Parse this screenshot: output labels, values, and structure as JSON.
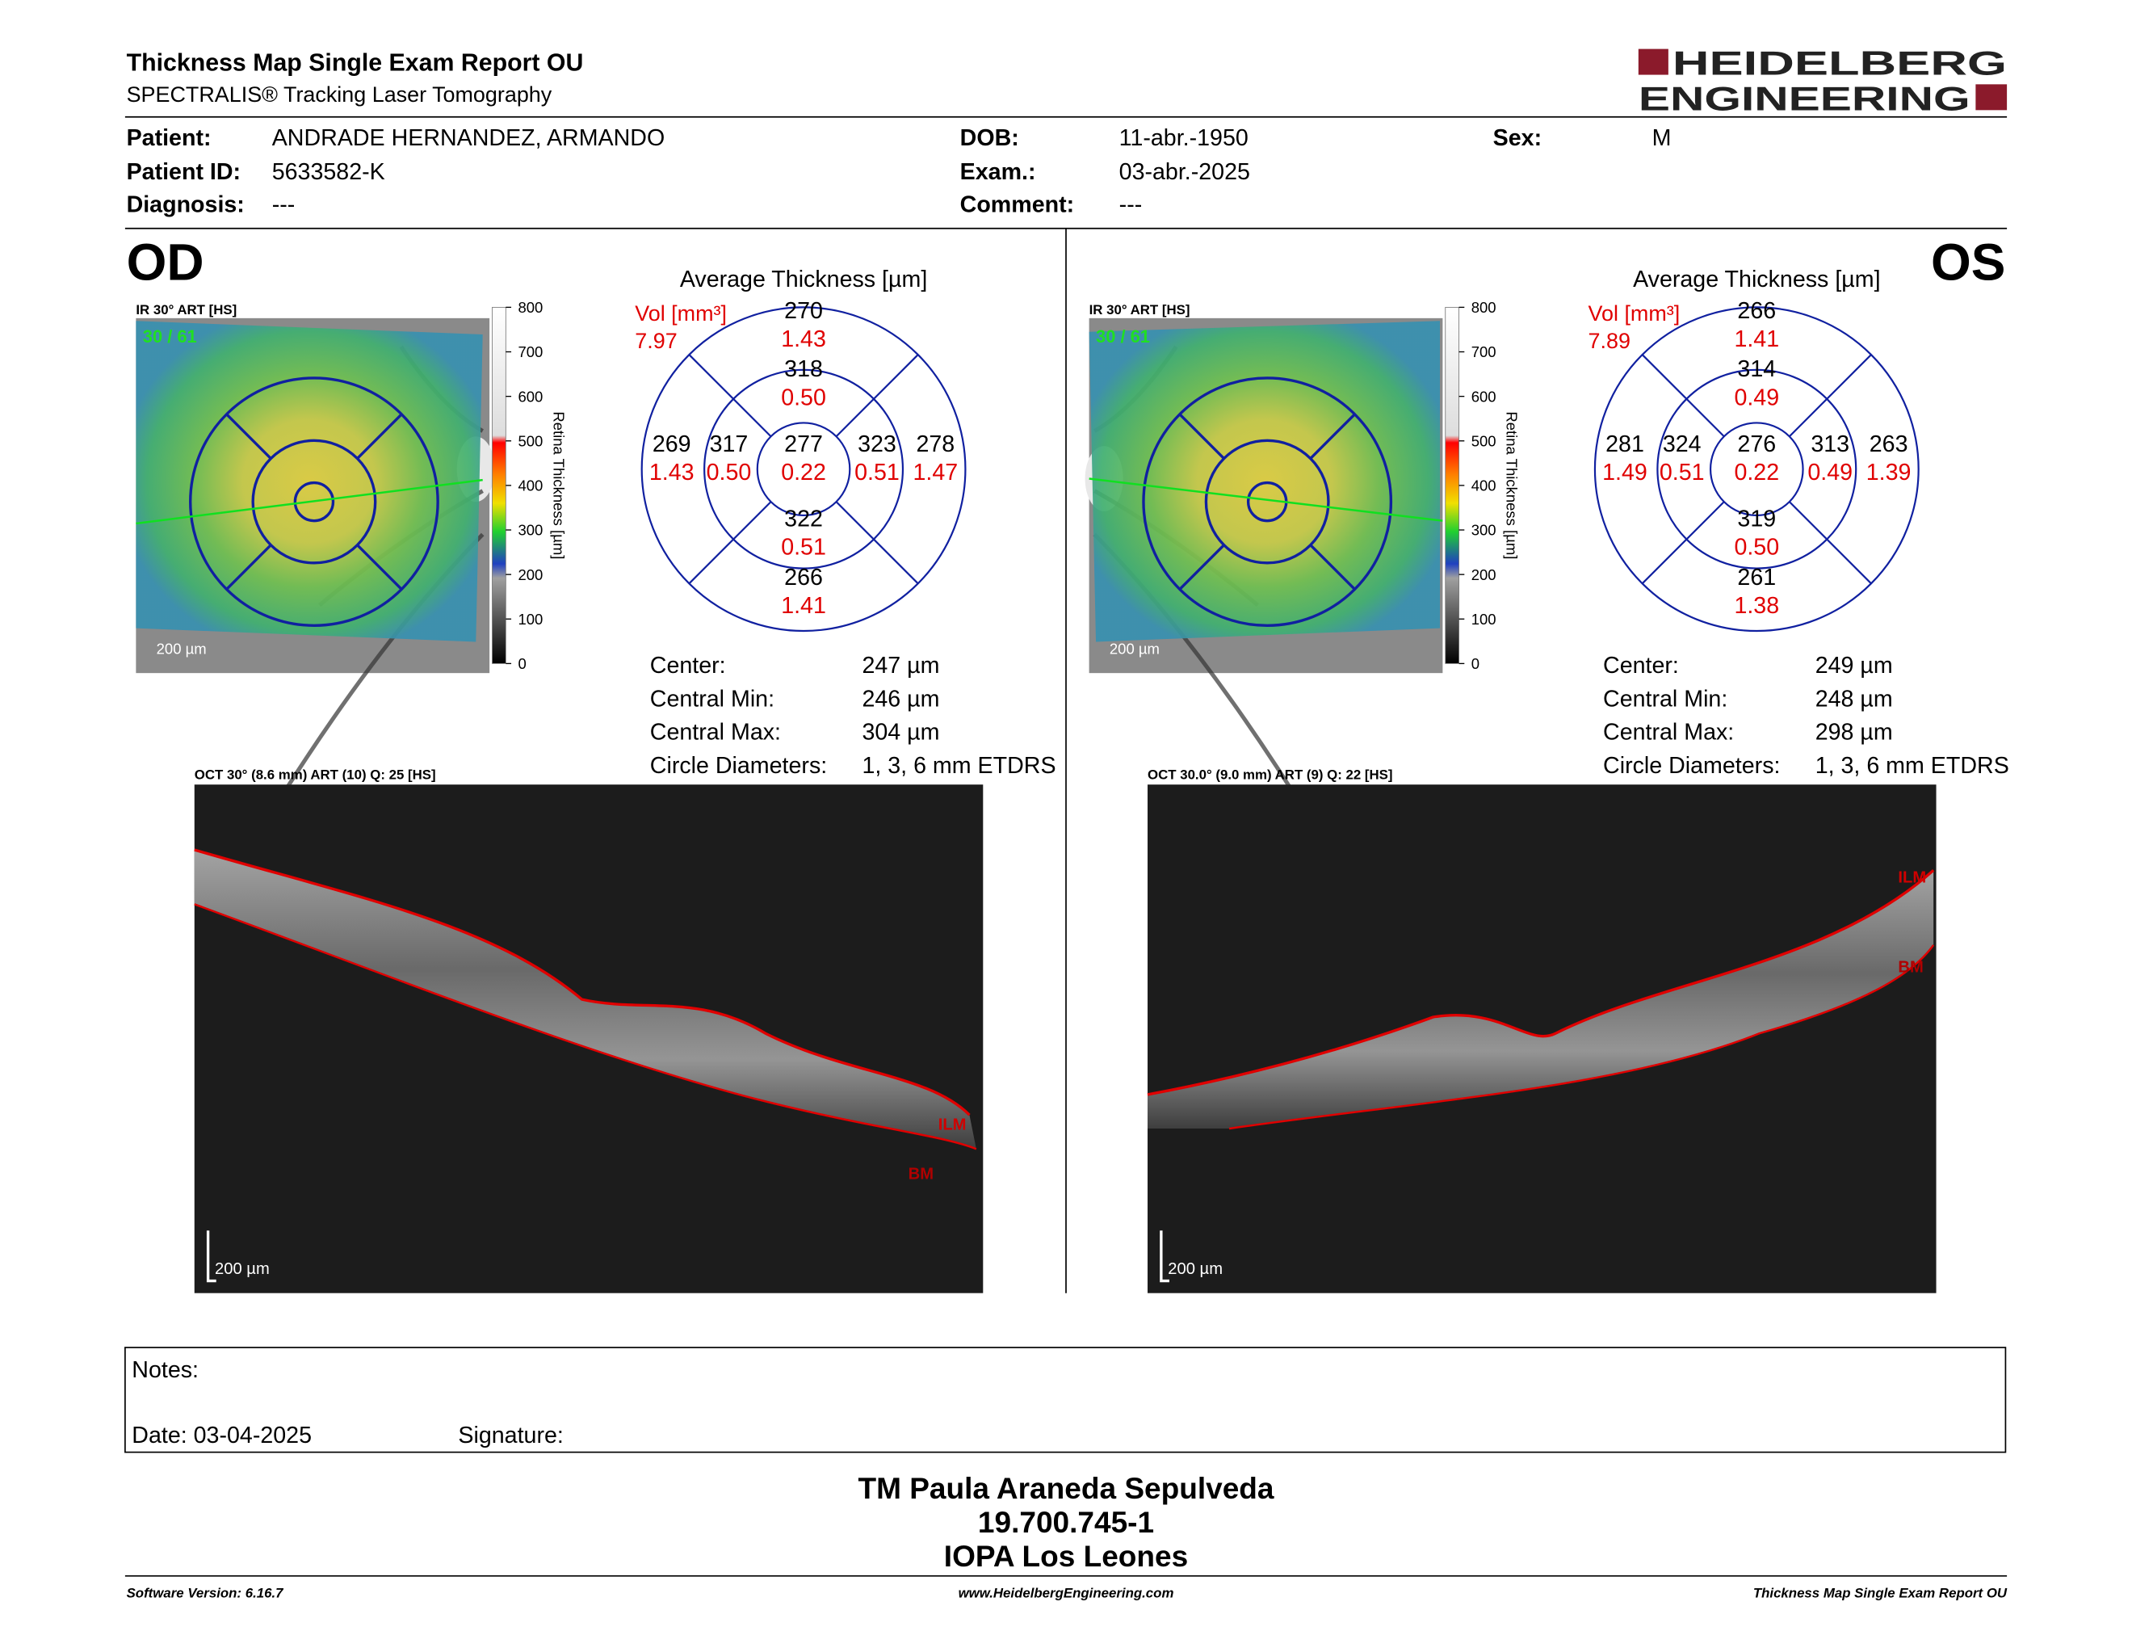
{
  "header": {
    "title": "Thickness Map Single Exam Report OU",
    "subtitle": "SPECTRALIS® Tracking Laser Tomography",
    "logo_line1": "HEIDELBERG",
    "logo_line2": "ENGINEERING"
  },
  "patient": {
    "rows": [
      [
        {
          "label": "Patient:",
          "value": "ANDRADE HERNANDEZ, ARMANDO"
        },
        {
          "label": "DOB:",
          "value": "11-abr.-1950"
        },
        {
          "label": "Sex:",
          "value": "M"
        }
      ],
      [
        {
          "label": "Patient ID:",
          "value": "5633582-K"
        },
        {
          "label": "Exam.:",
          "value": "03-abr.-2025"
        }
      ],
      [
        {
          "label": "Diagnosis:",
          "value": "---"
        },
        {
          "label": "Comment:",
          "value": "---"
        }
      ]
    ]
  },
  "eyes": [
    {
      "label": "OD",
      "ir_title": "IR 30° ART [HS]",
      "ir_count": "30 / 61",
      "ir_scale": "200 µm",
      "colorbar": {
        "ticks": [
          800,
          700,
          600,
          500,
          400,
          300,
          200,
          100,
          0
        ],
        "label": "Retina Thickness [µm]"
      },
      "grid_title": "Average Thickness [µm]",
      "vol_label": "Vol [mm³]",
      "vol": "7.97",
      "sectors": {
        "sup_outer": {
          "thickness": "270",
          "volume": "1.43"
        },
        "sup_inner": {
          "thickness": "318",
          "volume": "0.50"
        },
        "center": {
          "thickness": "277",
          "volume": "0.22"
        },
        "inf_inner": {
          "thickness": "322",
          "volume": "0.51"
        },
        "inf_outer": {
          "thickness": "266",
          "volume": "1.41"
        },
        "left_outer": {
          "thickness": "269",
          "volume": "1.43"
        },
        "left_inner": {
          "thickness": "317",
          "volume": "0.50"
        },
        "right_inner": {
          "thickness": "323",
          "volume": "0.51"
        },
        "right_outer": {
          "thickness": "278",
          "volume": "1.47"
        }
      },
      "stats": [
        {
          "label": "Center:",
          "value": "247 µm"
        },
        {
          "label": "Central Min:",
          "value": "246 µm"
        },
        {
          "label": "Central Max:",
          "value": "304 µm"
        },
        {
          "label": "Circle Diameters:",
          "value": "1, 3, 6 mm ETDRS"
        }
      ],
      "oct_title": "OCT 30° (8.6 mm) ART (10) Q: 25 [HS]",
      "ilm": "ILM",
      "bm": "BM",
      "oct_scale": "200 µm"
    },
    {
      "label": "OS",
      "ir_title": "IR 30° ART [HS]",
      "ir_count": "30 / 61",
      "ir_scale": "200 µm",
      "colorbar": {
        "ticks": [
          800,
          700,
          600,
          500,
          400,
          300,
          200,
          100,
          0
        ],
        "label": "Retina Thickness [µm]"
      },
      "grid_title": "Average Thickness [µm]",
      "vol_label": "Vol [mm³]",
      "vol": "7.89",
      "sectors": {
        "sup_outer": {
          "thickness": "266",
          "volume": "1.41"
        },
        "sup_inner": {
          "thickness": "314",
          "volume": "0.49"
        },
        "center": {
          "thickness": "276",
          "volume": "0.22"
        },
        "inf_inner": {
          "thickness": "319",
          "volume": "0.50"
        },
        "inf_outer": {
          "thickness": "261",
          "volume": "1.38"
        },
        "left_outer": {
          "thickness": "281",
          "volume": "1.49"
        },
        "left_inner": {
          "thickness": "324",
          "volume": "0.51"
        },
        "right_inner": {
          "thickness": "313",
          "volume": "0.49"
        },
        "right_outer": {
          "thickness": "263",
          "volume": "1.39"
        }
      },
      "stats": [
        {
          "label": "Center:",
          "value": "249 µm"
        },
        {
          "label": "Central Min:",
          "value": "248 µm"
        },
        {
          "label": "Central Max:",
          "value": "298 µm"
        },
        {
          "label": "Circle Diameters:",
          "value": "1, 3, 6 mm ETDRS"
        }
      ],
      "oct_title": "OCT 30.0° (9.0 mm) ART (9) Q: 22 [HS]",
      "ilm": "ILM",
      "bm": "BM",
      "oct_scale": "200 µm"
    }
  ],
  "notes": {
    "label": "Notes:",
    "date": "Date: 03-04-2025",
    "signature": "Signature:"
  },
  "signer": [
    "TM Paula Araneda Sepulveda",
    "19.700.745-1",
    "IOPA Los Leones"
  ],
  "footer": {
    "left": "Software Version: 6.16.7",
    "center": "www.HeidelbergEngineering.com",
    "right": "Thickness Map Single Exam Report OU"
  }
}
